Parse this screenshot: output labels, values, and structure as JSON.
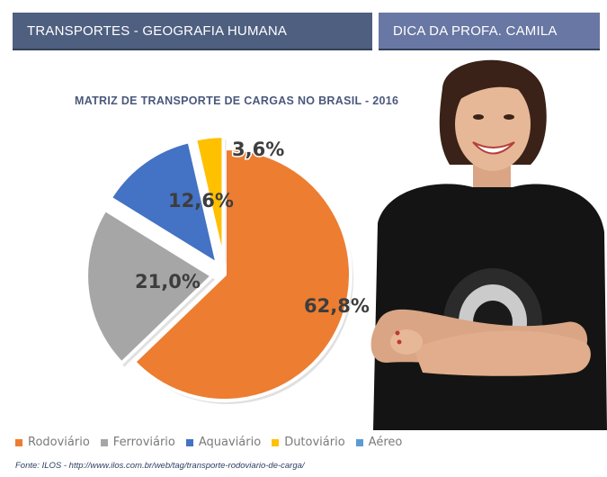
{
  "header": {
    "left_title": "TRANSPORTES - GEOGRAFIA HUMANA",
    "right_title": "DICA DA PROFA. CAMILA"
  },
  "chart_data": {
    "type": "pie",
    "title": "MATRIZ DE TRANSPORTE DE CARGAS NO BRASIL - 2016",
    "categories": [
      "Rodoviário",
      "Ferroviário",
      "Aquaviário",
      "Dutoviário",
      "Aéreo"
    ],
    "values": [
      62.8,
      21.0,
      12.6,
      3.6,
      0.0
    ],
    "labels": [
      "62,8%",
      "21,0%",
      "12,6%",
      "3,6%",
      ""
    ],
    "colors": [
      "#ed7d31",
      "#a6a6a6",
      "#4472c4",
      "#ffc000",
      "#5b9bd5"
    ],
    "legend_position": "bottom",
    "slice_3d": true
  },
  "legend": {
    "items": [
      {
        "label": "Rodoviário",
        "color": "#ed7d31"
      },
      {
        "label": "Ferroviário",
        "color": "#a6a6a6"
      },
      {
        "label": "Aquaviário",
        "color": "#4472c4"
      },
      {
        "label": "Dutoviário",
        "color": "#ffc000"
      },
      {
        "label": "Aéreo",
        "color": "#5b9bd5"
      }
    ]
  },
  "source": "Fonte: ILOS - http://www.ilos.com.br/web/tag/transporte-rodoviario-de-carga/"
}
